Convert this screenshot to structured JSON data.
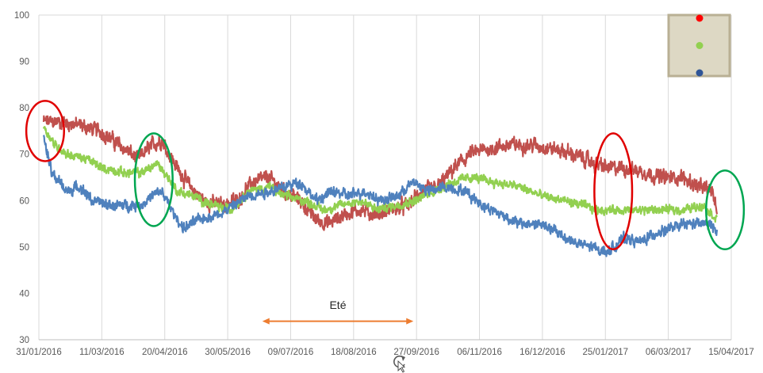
{
  "chart_data": {
    "type": "line",
    "title": "",
    "xlabel": "",
    "ylabel": "",
    "x_ticks": [
      "31/01/2016",
      "11/03/2016",
      "20/04/2016",
      "30/05/2016",
      "09/07/2016",
      "18/08/2016",
      "27/09/2016",
      "06/11/2016",
      "16/12/2016",
      "25/01/2017",
      "06/03/2017",
      "15/04/2017"
    ],
    "xlim": [
      "2016-01-31",
      "2017-04-15"
    ],
    "ylim": [
      30,
      100
    ],
    "y_ticks": [
      30,
      40,
      50,
      60,
      70,
      80,
      90,
      100
    ],
    "grid": "vertical",
    "legend": {
      "placement": "top-right",
      "background": "#ddd8c4",
      "border": "#b9b094",
      "entries": [
        {
          "marker_color": "#ff0000"
        },
        {
          "marker_color": "#92d050"
        },
        {
          "marker_color": "#2f5597"
        }
      ]
    },
    "series": [
      {
        "color": "#c0504d",
        "noise": 1.8,
        "points": [
          [
            "2016-02-03",
            77
          ],
          [
            "2016-02-15",
            77
          ],
          [
            "2016-02-28",
            76
          ],
          [
            "2016-03-10",
            75
          ],
          [
            "2016-03-22",
            72
          ],
          [
            "2016-04-03",
            69
          ],
          [
            "2016-04-12",
            72
          ],
          [
            "2016-04-18",
            73
          ],
          [
            "2016-04-28",
            67
          ],
          [
            "2016-05-06",
            63
          ],
          [
            "2016-05-15",
            60
          ],
          [
            "2016-05-25",
            59
          ],
          [
            "2016-06-05",
            60
          ],
          [
            "2016-06-15",
            64
          ],
          [
            "2016-06-25",
            65
          ],
          [
            "2016-07-05",
            62
          ],
          [
            "2016-07-15",
            60
          ],
          [
            "2016-07-25",
            56
          ],
          [
            "2016-08-02",
            55
          ],
          [
            "2016-08-12",
            57
          ],
          [
            "2016-08-22",
            58
          ],
          [
            "2016-09-01",
            57
          ],
          [
            "2016-09-11",
            58
          ],
          [
            "2016-09-21",
            59
          ],
          [
            "2016-10-01",
            62
          ],
          [
            "2016-10-11",
            63
          ],
          [
            "2016-10-21",
            67
          ],
          [
            "2016-10-31",
            70
          ],
          [
            "2016-11-10",
            71
          ],
          [
            "2016-11-25",
            72
          ],
          [
            "2016-12-10",
            72
          ],
          [
            "2016-12-25",
            71
          ],
          [
            "2017-01-05",
            70
          ],
          [
            "2017-01-18",
            68
          ],
          [
            "2017-01-28",
            67
          ],
          [
            "2017-02-08",
            67
          ],
          [
            "2017-02-20",
            66
          ],
          [
            "2017-03-02",
            65
          ],
          [
            "2017-03-15",
            65
          ],
          [
            "2017-03-25",
            63
          ],
          [
            "2017-04-03",
            62
          ],
          [
            "2017-04-06",
            58
          ]
        ]
      },
      {
        "color": "#92d050",
        "noise": 1.1,
        "points": [
          [
            "2016-02-03",
            76
          ],
          [
            "2016-02-10",
            72
          ],
          [
            "2016-02-18",
            70
          ],
          [
            "2016-03-01",
            69
          ],
          [
            "2016-03-12",
            67
          ],
          [
            "2016-03-25",
            66
          ],
          [
            "2016-04-05",
            66
          ],
          [
            "2016-04-15",
            68
          ],
          [
            "2016-04-20",
            66
          ],
          [
            "2016-04-28",
            62
          ],
          [
            "2016-05-08",
            61
          ],
          [
            "2016-05-20",
            59
          ],
          [
            "2016-06-01",
            58
          ],
          [
            "2016-06-12",
            62
          ],
          [
            "2016-06-25",
            63
          ],
          [
            "2016-07-05",
            61
          ],
          [
            "2016-07-18",
            60
          ],
          [
            "2016-07-30",
            58
          ],
          [
            "2016-08-10",
            59
          ],
          [
            "2016-08-22",
            60
          ],
          [
            "2016-09-02",
            58
          ],
          [
            "2016-09-14",
            59
          ],
          [
            "2016-09-26",
            60
          ],
          [
            "2016-10-08",
            62
          ],
          [
            "2016-10-20",
            64
          ],
          [
            "2016-11-01",
            65
          ],
          [
            "2016-11-15",
            64
          ],
          [
            "2016-12-01",
            63
          ],
          [
            "2016-12-16",
            61
          ],
          [
            "2016-12-30",
            60
          ],
          [
            "2017-01-10",
            59
          ],
          [
            "2017-01-20",
            58
          ],
          [
            "2017-02-01",
            58
          ],
          [
            "2017-02-15",
            58
          ],
          [
            "2017-03-01",
            58
          ],
          [
            "2017-03-15",
            58
          ],
          [
            "2017-03-28",
            59
          ],
          [
            "2017-04-06",
            56
          ]
        ]
      },
      {
        "color": "#4f81bd",
        "noise": 1.3,
        "points": [
          [
            "2016-02-03",
            74
          ],
          [
            "2016-02-08",
            66
          ],
          [
            "2016-02-18",
            62
          ],
          [
            "2016-02-26",
            63
          ],
          [
            "2016-03-05",
            60
          ],
          [
            "2016-03-15",
            59
          ],
          [
            "2016-03-25",
            59
          ],
          [
            "2016-04-05",
            59
          ],
          [
            "2016-04-12",
            61
          ],
          [
            "2016-04-18",
            62
          ],
          [
            "2016-04-26",
            57
          ],
          [
            "2016-05-02",
            54
          ],
          [
            "2016-05-12",
            56
          ],
          [
            "2016-05-24",
            57
          ],
          [
            "2016-06-03",
            59
          ],
          [
            "2016-06-12",
            61
          ],
          [
            "2016-06-25",
            62
          ],
          [
            "2016-07-05",
            63
          ],
          [
            "2016-07-15",
            64
          ],
          [
            "2016-07-25",
            60
          ],
          [
            "2016-08-05",
            62
          ],
          [
            "2016-08-15",
            61
          ],
          [
            "2016-08-25",
            62
          ],
          [
            "2016-09-05",
            60
          ],
          [
            "2016-09-15",
            61
          ],
          [
            "2016-09-25",
            64
          ],
          [
            "2016-10-05",
            62
          ],
          [
            "2016-10-15",
            63
          ],
          [
            "2016-10-28",
            62
          ],
          [
            "2016-11-08",
            59
          ],
          [
            "2016-11-20",
            57
          ],
          [
            "2016-12-01",
            55
          ],
          [
            "2016-12-14",
            55
          ],
          [
            "2016-12-26",
            53
          ],
          [
            "2017-01-05",
            51
          ],
          [
            "2017-01-15",
            50
          ],
          [
            "2017-01-27",
            49
          ],
          [
            "2017-02-06",
            52
          ],
          [
            "2017-02-16",
            51
          ],
          [
            "2017-02-26",
            53
          ],
          [
            "2017-03-08",
            54
          ],
          [
            "2017-03-18",
            55
          ],
          [
            "2017-03-30",
            55
          ],
          [
            "2017-04-06",
            54
          ]
        ]
      }
    ],
    "annotations": {
      "ellipses": [
        {
          "color": "#e00000",
          "x": "2016-02-04",
          "y": 75,
          "rx_days": 12,
          "ry": 6.5
        },
        {
          "color": "#00a651",
          "x": "2016-04-13",
          "y": 64.5,
          "rx_days": 12,
          "ry": 10
        },
        {
          "color": "#e00000",
          "x": "2017-01-30",
          "y": 62,
          "rx_days": 12,
          "ry": 12.5
        },
        {
          "color": "#00a651",
          "x": "2017-04-11",
          "y": 58,
          "rx_days": 12,
          "ry": 8.5
        }
      ],
      "arrow": {
        "label": "Eté",
        "color": "#ed7d31",
        "from": "2016-06-21",
        "to": "2016-09-25",
        "y": 34,
        "label_y": 37.5
      }
    }
  }
}
